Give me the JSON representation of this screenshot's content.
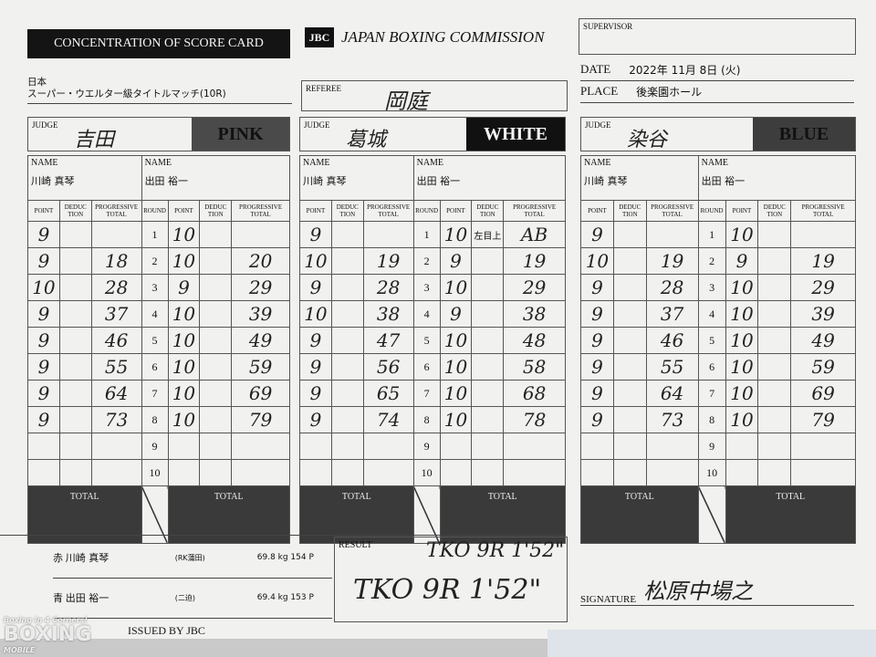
{
  "header": {
    "title": "CONCENTRATION OF SCORE CARD",
    "logo": "JBC",
    "org": "JAPAN BOXING COMMISSION",
    "event_line1": "日本",
    "event_line2": "スーパー・ウエルター級タイトルマッチ(10R)"
  },
  "referee": {
    "label": "REFEREE",
    "name": "岡庭"
  },
  "supervisor": {
    "label": "SUPERVISOR",
    "name": ""
  },
  "date": {
    "label": "DATE",
    "value": "2022年 11月 8日 (火)"
  },
  "place": {
    "label": "PLACE",
    "value": "後楽園ホール"
  },
  "labels": {
    "judge": "JUDGE",
    "name": "NAME",
    "point": "POINT",
    "deduction": "DEDUC TION",
    "progressive": "PROGRESSIVE TOTAL",
    "round": "ROUND",
    "total": "TOTAL"
  },
  "judges": [
    {
      "name": "吉田",
      "color": "PINK",
      "color_bg": "#4a4a4a",
      "color_fg": "#111",
      "red_name": "川崎 真琴",
      "blue_name": "出田 裕一",
      "red_points": [
        "9",
        "9",
        "10",
        "9",
        "9",
        "9",
        "9",
        "9",
        "",
        ""
      ],
      "red_deductions": [
        "",
        "",
        "",
        "",
        "",
        "",
        "",
        "",
        "",
        ""
      ],
      "red_progressive": [
        "",
        "18",
        "28",
        "37",
        "46",
        "55",
        "64",
        "73",
        "",
        ""
      ],
      "blue_points": [
        "10",
        "10",
        "9",
        "10",
        "10",
        "10",
        "10",
        "10",
        "",
        ""
      ],
      "blue_deductions": [
        "",
        "",
        "",
        "",
        "",
        "",
        "",
        "",
        "",
        ""
      ],
      "blue_progressive": [
        "",
        "20",
        "29",
        "39",
        "49",
        "59",
        "69",
        "79",
        "",
        ""
      ]
    },
    {
      "name": "葛城",
      "color": "WHITE",
      "color_bg": "#111",
      "color_fg": "#f4f4f4",
      "red_name": "川崎 真琴",
      "blue_name": "出田 裕一",
      "red_points": [
        "9",
        "10",
        "9",
        "10",
        "9",
        "9",
        "9",
        "9",
        "",
        ""
      ],
      "red_deductions": [
        "",
        "",
        "",
        "",
        "",
        "",
        "",
        "",
        "",
        ""
      ],
      "red_progressive": [
        "",
        "19",
        "28",
        "38",
        "47",
        "56",
        "65",
        "74",
        "",
        ""
      ],
      "blue_points": [
        "10",
        "9",
        "10",
        "9",
        "10",
        "10",
        "10",
        "10",
        "",
        ""
      ],
      "blue_deductions": [
        "左目上",
        "",
        "",
        "",
        "",
        "",
        "",
        "",
        "",
        ""
      ],
      "blue_progressive": [
        "AB",
        "19",
        "29",
        "38",
        "48",
        "58",
        "68",
        "78",
        "",
        ""
      ]
    },
    {
      "name": "染谷",
      "color": "BLUE",
      "color_bg": "#3d3d3d",
      "color_fg": "#111",
      "red_name": "川崎 真琴",
      "blue_name": "出田 裕一",
      "red_points": [
        "9",
        "10",
        "9",
        "9",
        "9",
        "9",
        "9",
        "9",
        "",
        ""
      ],
      "red_deductions": [
        "",
        "",
        "",
        "",
        "",
        "",
        "",
        "",
        "",
        ""
      ],
      "red_progressive": [
        "",
        "19",
        "28",
        "37",
        "46",
        "55",
        "64",
        "73",
        "",
        ""
      ],
      "blue_points": [
        "10",
        "9",
        "10",
        "10",
        "10",
        "10",
        "10",
        "10",
        "",
        ""
      ],
      "blue_deductions": [
        "",
        "",
        "",
        "",
        "",
        "",
        "",
        "",
        "",
        ""
      ],
      "blue_progressive": [
        "",
        "19",
        "29",
        "39",
        "49",
        "59",
        "69",
        "79",
        "",
        ""
      ]
    }
  ],
  "rounds": [
    "1",
    "2",
    "3",
    "4",
    "5",
    "6",
    "7",
    "8",
    "9",
    "10"
  ],
  "fighters": [
    {
      "corner": "赤",
      "name": "川崎 真琴",
      "gym": "(RK蒲田)",
      "weight": "69.8 kg 154 P"
    },
    {
      "corner": "青",
      "name": "出田 裕一",
      "gym": "(二迫)",
      "weight": "69.4 kg 153 P"
    }
  ],
  "result": {
    "label": "RESULT",
    "value": "TKO 9R 1'52\"",
    "note": "TKO 9R 1'52\""
  },
  "signature": {
    "label": "SIGNATURE",
    "name": "松原中場之"
  },
  "footer": {
    "issued": "ISSUED BY JBC",
    "watermark_top": "Boxing in 4 Corners!",
    "watermark": "BOXING",
    "watermark_sub": "MOBILE"
  }
}
